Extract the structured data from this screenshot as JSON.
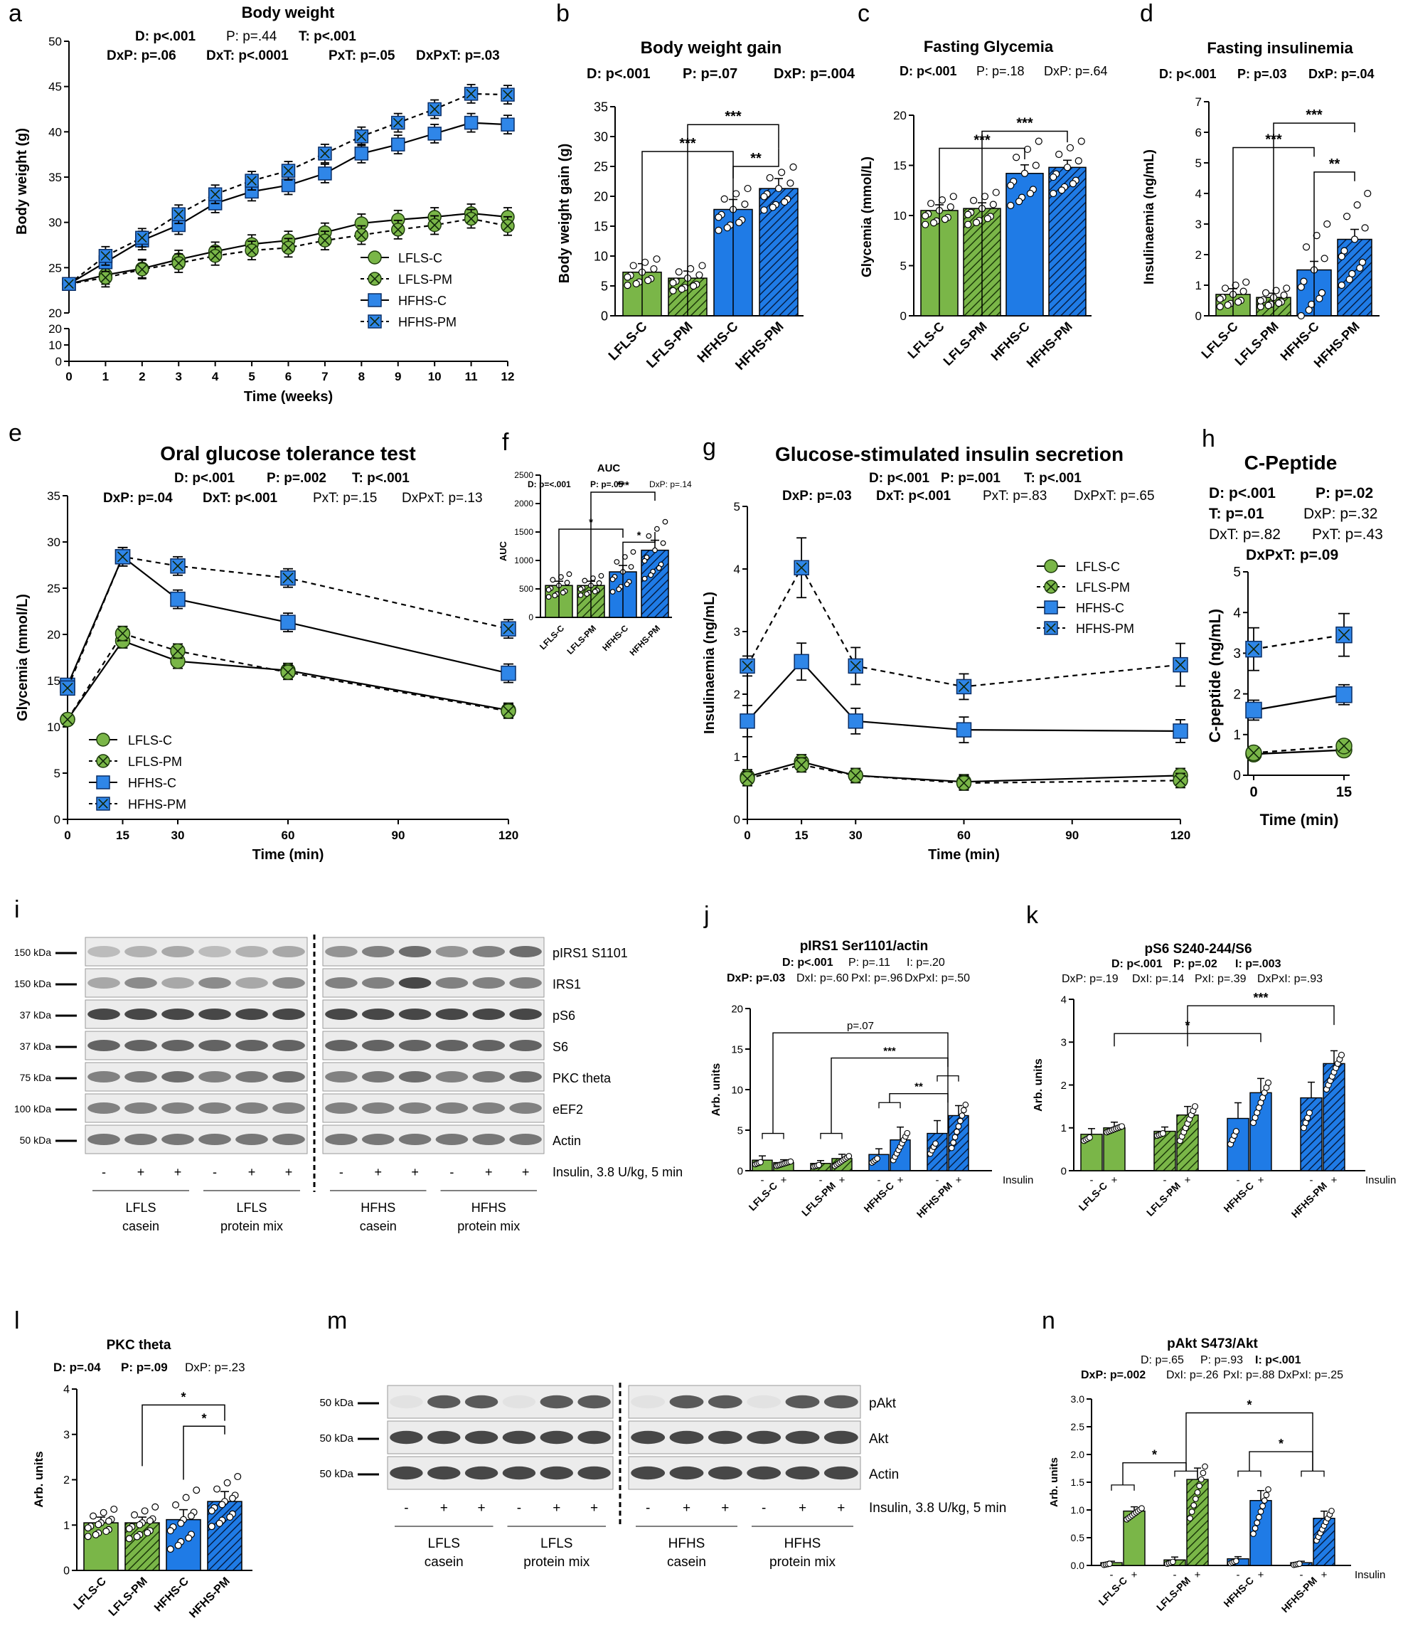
{
  "colors": {
    "green": "#7ab648",
    "blue": "#1f7be6",
    "blue_marker": "#2f86e8",
    "dark_green": "#3c7a1c",
    "dark_blue": "#0b4aa0",
    "blot_band": "#2a2a2a"
  },
  "icons": {
    "dot": "open-circle",
    "hatch": "diagonal-hatch",
    "cross": "x-marker"
  },
  "common": {
    "groups4": [
      "LFLS-C",
      "LFLS-PM",
      "HFHS-C",
      "HFHS-PM"
    ],
    "insulin_label": "Insulin",
    "minus": "-",
    "plus": "+"
  },
  "chart_data": [
    {
      "panel": "a",
      "type": "line",
      "title": "Body weight",
      "stats": [
        "D: p<.001",
        "P: p=.44",
        "T: p<.001",
        "DxP: p=.06",
        "DxT: p<.0001",
        "PxT: p=.05",
        "DxPxT: p=.03"
      ],
      "xlabel": "Time (weeks)",
      "ylabel": "Body weight (g)",
      "x": [
        0,
        1,
        2,
        3,
        4,
        5,
        6,
        7,
        8,
        9,
        10,
        11,
        12
      ],
      "xticks": [
        "0",
        "1",
        "2",
        "3",
        "4",
        "5",
        "6",
        "7",
        "8",
        "9",
        "10",
        "11",
        "12"
      ],
      "yticks_upper": [
        "20",
        "25",
        "30",
        "35",
        "40",
        "45",
        "50"
      ],
      "yticks_lower": [
        "0",
        "10",
        "20"
      ],
      "ylim": [
        20,
        50
      ],
      "series": [
        {
          "name": "LFLS-C",
          "values": [
            23.2,
            24.2,
            24.9,
            25.9,
            26.8,
            27.6,
            28.0,
            28.9,
            29.9,
            30.3,
            30.6,
            31.0,
            30.6
          ]
        },
        {
          "name": "LFLS-PM",
          "values": [
            23.2,
            23.9,
            24.8,
            25.5,
            26.3,
            26.9,
            27.2,
            28.0,
            28.6,
            29.2,
            29.7,
            30.4,
            29.6
          ]
        },
        {
          "name": "HFHS-C",
          "values": [
            23.2,
            25.6,
            28.0,
            29.7,
            32.1,
            33.4,
            34.1,
            35.4,
            37.6,
            38.6,
            39.8,
            41.0,
            40.8
          ]
        },
        {
          "name": "HFHS-PM",
          "values": [
            23.2,
            26.3,
            28.3,
            30.9,
            33.1,
            34.6,
            35.7,
            37.6,
            39.5,
            41.0,
            42.5,
            44.2,
            44.1
          ]
        }
      ],
      "legend": [
        "LFLS-C",
        "LFLS-PM",
        "HFHS-C",
        "HFHS-PM"
      ]
    },
    {
      "panel": "b",
      "type": "bar",
      "title": "Body weight gain",
      "stats": [
        "D: p<.001",
        "P: p=.07",
        "DxP: p=.004"
      ],
      "ylabel": "Body weight gain (g)",
      "categories": [
        "LFLS-C",
        "LFLS-PM",
        "HFHS-C",
        "HFHS-PM"
      ],
      "values": [
        7.3,
        6.3,
        17.8,
        21.3
      ],
      "ylim": [
        0,
        35
      ],
      "yticks": [
        "0",
        "5",
        "10",
        "15",
        "20",
        "25",
        "30",
        "35"
      ],
      "sig": [
        "***",
        "***",
        "**"
      ]
    },
    {
      "panel": "c",
      "type": "bar",
      "title": "Fasting Glycemia",
      "stats": [
        "D: p<.001",
        "P: p=.18",
        "DxP: p=.64"
      ],
      "ylabel": "Glycemia (mmol/L)",
      "categories": [
        "LFLS-C",
        "LFLS-PM",
        "HFHS-C",
        "HFHS-PM"
      ],
      "values": [
        10.5,
        10.7,
        14.2,
        14.8
      ],
      "ylim": [
        0,
        20
      ],
      "yticks": [
        "0",
        "5",
        "10",
        "15",
        "20"
      ],
      "sig": [
        "***",
        "***"
      ]
    },
    {
      "panel": "d",
      "type": "bar",
      "title": "Fasting insulinemia",
      "stats": [
        "D: p<.001",
        "P: p=.03",
        "DxP: p=.04"
      ],
      "ylabel": "Insulinaemia (ng/mL)",
      "categories": [
        "LFLS-C",
        "LFLS-PM",
        "HFHS-C",
        "HFHS-PM"
      ],
      "values": [
        0.7,
        0.6,
        1.5,
        2.5
      ],
      "ylim": [
        0,
        7
      ],
      "yticks": [
        "0",
        "1",
        "2",
        "3",
        "4",
        "5",
        "6",
        "7"
      ],
      "sig": [
        "***",
        "***",
        "**"
      ]
    },
    {
      "panel": "e",
      "type": "line",
      "title": "Oral glucose tolerance test",
      "stats": [
        "D: p<.001",
        "P: p=.002",
        "T: p<.001",
        "DxP: p=.04",
        "DxT: p<.001",
        "PxT: p=.15",
        "DxPxT: p=.13"
      ],
      "xlabel": "Time (min)",
      "ylabel": "Glycemia (mmol/L)",
      "x": [
        0,
        15,
        30,
        60,
        120
      ],
      "xticks": [
        "0",
        "15",
        "30",
        "60",
        "90",
        "120"
      ],
      "xtick_values": [
        0,
        15,
        30,
        60,
        90,
        120
      ],
      "yticks": [
        "0",
        "5",
        "10",
        "15",
        "20",
        "25",
        "30",
        "35"
      ],
      "ylim": [
        0,
        35
      ],
      "series": [
        {
          "name": "LFLS-C",
          "values": [
            10.8,
            19.3,
            17.1,
            16.1,
            11.8
          ]
        },
        {
          "name": "LFLS-PM",
          "values": [
            10.8,
            20.1,
            18.2,
            15.9,
            11.7
          ]
        },
        {
          "name": "HFHS-C",
          "values": [
            14.5,
            28.4,
            23.8,
            21.3,
            15.8
          ]
        },
        {
          "name": "HFHS-PM",
          "values": [
            14.2,
            28.4,
            27.4,
            26.1,
            20.6
          ]
        }
      ],
      "legend": [
        "LFLS-C",
        "LFLS-PM",
        "HFHS-C",
        "HFHS-PM"
      ]
    },
    {
      "panel": "f",
      "type": "bar",
      "title": "AUC",
      "stats": [
        "D: p=<.001",
        "P: p=.05",
        "DxP: p=.14"
      ],
      "ylabel": "AUC",
      "categories": [
        "LFLS-C",
        "LFLS-PM",
        "HFHS-C",
        "HFHS-PM"
      ],
      "values": [
        560,
        560,
        800,
        1180
      ],
      "ylim": [
        0,
        2500
      ],
      "yticks": [
        "0",
        "500",
        "1000",
        "1500",
        "2000",
        "2500"
      ],
      "sig": [
        "*",
        "***",
        "*"
      ]
    },
    {
      "panel": "g",
      "type": "line",
      "title": "Glucose-stimulated insulin secretion",
      "stats": [
        "D: p<.001",
        "P: p=.001",
        "T: p<.001",
        "DxP: p=.03",
        "DxT: p<.001",
        "PxT: p=.83",
        "DxPxT: p=.65"
      ],
      "xlabel": "Time (min)",
      "ylabel": "Insulinaemia (ng/mL)",
      "x": [
        0,
        15,
        30,
        60,
        120
      ],
      "xticks": [
        "0",
        "15",
        "30",
        "60",
        "90",
        "120"
      ],
      "xtick_values": [
        0,
        15,
        30,
        60,
        90,
        120
      ],
      "yticks": [
        "0",
        "1",
        "2",
        "3",
        "4",
        "5"
      ],
      "ylim": [
        0,
        5
      ],
      "series": [
        {
          "name": "LFLS-C",
          "values": [
            0.68,
            0.92,
            0.7,
            0.6,
            0.7
          ]
        },
        {
          "name": "LFLS-PM",
          "values": [
            0.65,
            0.87,
            0.7,
            0.58,
            0.62
          ]
        },
        {
          "name": "HFHS-C",
          "values": [
            1.57,
            2.52,
            1.57,
            1.43,
            1.41
          ]
        },
        {
          "name": "HFHS-PM",
          "values": [
            2.45,
            4.02,
            2.45,
            2.12,
            2.47
          ]
        }
      ],
      "legend": [
        "LFLS-C",
        "LFLS-PM",
        "HFHS-C",
        "HFHS-PM"
      ]
    },
    {
      "panel": "h",
      "type": "line",
      "title": "C-Peptide",
      "stats": [
        "D: p<.001",
        "P: p=.02",
        "T: p=.01",
        "DxP: p=.32",
        "DxT: p=.82",
        "PxT: p=.43",
        "DxPxT: p=.09"
      ],
      "xlabel": "Time (min)",
      "ylabel": "C-peptide (ng/mL)",
      "x": [
        0,
        15
      ],
      "xticks": [
        "0",
        "15"
      ],
      "yticks": [
        "0",
        "1",
        "2",
        "3",
        "4",
        "5"
      ],
      "ylim": [
        0,
        5
      ],
      "series": [
        {
          "name": "LFLS-C",
          "values": [
            0.52,
            0.62
          ]
        },
        {
          "name": "LFLS-PM",
          "values": [
            0.55,
            0.72
          ]
        },
        {
          "name": "HFHS-C",
          "values": [
            1.6,
            1.98
          ]
        },
        {
          "name": "HFHS-PM",
          "values": [
            3.1,
            3.45
          ]
        }
      ]
    },
    {
      "panel": "j",
      "type": "bar",
      "title": "pIRS1 Ser1101/actin",
      "stats": [
        "D: p<.001",
        "P: p=.11",
        "I: p=.20",
        "DxP: p=.03",
        "DxI: p=.60",
        "PxI: p=.96",
        "DxPxI: p=.50"
      ],
      "ylabel": "Arb. units",
      "categories": [
        "LFLS-C",
        "LFLS-PM",
        "HFHS-C",
        "HFHS-PM"
      ],
      "series": [
        {
          "name": "-",
          "values": [
            1.3,
            0.9,
            2.0,
            4.6
          ]
        },
        {
          "name": "+",
          "values": [
            1.0,
            1.5,
            3.8,
            6.8
          ]
        }
      ],
      "ylim": [
        0,
        20
      ],
      "yticks": [
        "0",
        "5",
        "10",
        "15",
        "20"
      ],
      "sig": [
        "p=.07",
        "***",
        "**"
      ],
      "xfactor": "Insulin"
    },
    {
      "panel": "k",
      "type": "bar",
      "title": "pS6 S240-244/S6",
      "stats": [
        "D: p<.001",
        "P: p=.02",
        "I: p=.003",
        "DxP: p=.19",
        "DxI: p=.14",
        "PxI: p=.39",
        "DxPxI: p=.93"
      ],
      "ylabel": "Arb. units",
      "categories": [
        "LFLS-C",
        "LFLS-PM",
        "HFHS-C",
        "HFHS-PM"
      ],
      "series": [
        {
          "name": "-",
          "values": [
            0.85,
            0.92,
            1.22,
            1.7
          ]
        },
        {
          "name": "+",
          "values": [
            1.0,
            1.3,
            1.82,
            2.5
          ]
        }
      ],
      "ylim": [
        0,
        4
      ],
      "yticks": [
        "0",
        "1",
        "2",
        "3",
        "4"
      ],
      "sig": [
        "*",
        "***"
      ],
      "xfactor": "Insulin"
    },
    {
      "panel": "l",
      "type": "bar",
      "title": "PKC theta",
      "stats": [
        "D: p=.04",
        "P: p=.09",
        "DxP: p=.23"
      ],
      "ylabel": "Arb. units",
      "categories": [
        "LFLS-C",
        "LFLS-PM",
        "HFHS-C",
        "HFHS-PM"
      ],
      "values": [
        1.05,
        1.05,
        1.12,
        1.52
      ],
      "ylim": [
        0,
        4
      ],
      "yticks": [
        "0",
        "1",
        "2",
        "3",
        "4"
      ],
      "sig": [
        "*",
        "*"
      ]
    },
    {
      "panel": "n",
      "type": "bar",
      "title": "pAkt S473/Akt",
      "stats": [
        "D: p=.65",
        "P: p=.93",
        "I: p<.001",
        "DxP: p=.002",
        "DxI: p=.26",
        "PxI: p=.88",
        "DxPxI: p=.25"
      ],
      "ylabel": "Arb. units",
      "categories": [
        "LFLS-C",
        "LFLS-PM",
        "HFHS-C",
        "HFHS-PM"
      ],
      "series": [
        {
          "name": "-",
          "values": [
            0.05,
            0.1,
            0.12,
            0.05
          ]
        },
        {
          "name": "+",
          "values": [
            0.98,
            1.55,
            1.17,
            0.85
          ]
        }
      ],
      "ylim": [
        0,
        3.0
      ],
      "yticks": [
        "0.0",
        "0.5",
        "1.0",
        "1.5",
        "2.0",
        "2.5",
        "3.0"
      ],
      "sig": [
        "*",
        "*",
        "*"
      ],
      "xfactor": "Insulin"
    }
  ],
  "blot_i": {
    "panel": "i",
    "kda": [
      "150 kDa",
      "150 kDa",
      "37 kDa",
      "37 kDa",
      "75 kDa",
      "100 kDa",
      "50 kDa"
    ],
    "proteins": [
      "pIRS1 S1101",
      "IRS1",
      "pS6",
      "S6",
      "PKC theta",
      "eEF2",
      "Actin"
    ],
    "insulin_row": [
      "-",
      "+",
      "+",
      "-",
      "+",
      "+",
      "-",
      "+",
      "+",
      "-",
      "+",
      "+"
    ],
    "insulin_label": "Insulin, 3.8 U/kg, 5 min",
    "groups": [
      [
        "LFLS",
        "casein"
      ],
      [
        "LFLS",
        "protein mix"
      ],
      [
        "HFHS",
        "casein"
      ],
      [
        "HFHS",
        "protein mix"
      ]
    ]
  },
  "blot_m": {
    "panel": "m",
    "kda": [
      "50 kDa",
      "50 kDa",
      "50 kDa"
    ],
    "proteins": [
      "pAkt",
      "Akt",
      "Actin"
    ],
    "insulin_row": [
      "-",
      "+",
      "+",
      "-",
      "+",
      "+",
      "-",
      "+",
      "+",
      "-",
      "+",
      "+"
    ],
    "insulin_label": "Insulin, 3.8 U/kg, 5 min",
    "groups": [
      [
        "LFLS",
        "casein"
      ],
      [
        "LFLS",
        "protein mix"
      ],
      [
        "HFHS",
        "casein"
      ],
      [
        "HFHS",
        "protein mix"
      ]
    ]
  }
}
